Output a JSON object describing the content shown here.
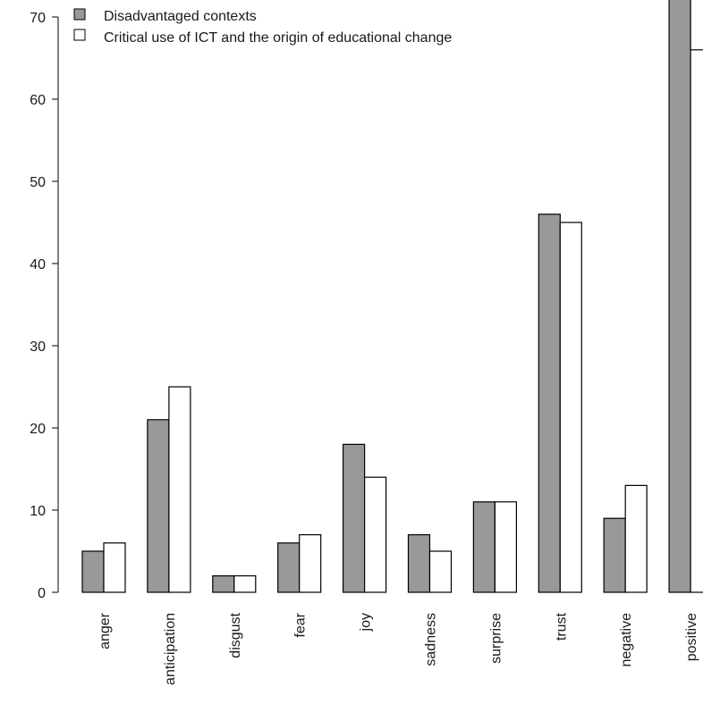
{
  "chart_data": {
    "type": "bar",
    "title": "",
    "xlabel": "",
    "ylabel": "",
    "categories": [
      "anger",
      "anticipation",
      "disgust",
      "fear",
      "joy",
      "sadness",
      "surprise",
      "trust",
      "negative",
      "positive"
    ],
    "series": [
      {
        "name": "Disadvantaged contexts",
        "values": [
          5,
          21,
          2,
          6,
          18,
          7,
          11,
          46,
          9,
          74
        ],
        "color": "#999999"
      },
      {
        "name": "Critical use of ICT and the origin of educational change",
        "values": [
          6,
          25,
          2,
          7,
          14,
          5,
          11,
          45,
          13,
          66
        ],
        "color": "#ffffff"
      }
    ],
    "yticks": [
      0,
      10,
      20,
      30,
      40,
      50,
      60,
      70
    ],
    "ylim": [
      0,
      70
    ],
    "grid": false,
    "legend_position": "top-left",
    "bar_border_color": "#000000",
    "axis_color": "#000000"
  }
}
